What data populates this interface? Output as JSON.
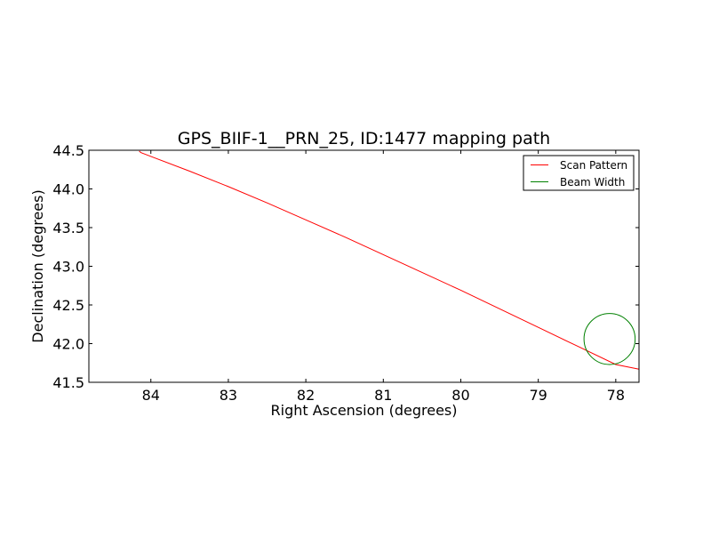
{
  "chart_data": {
    "type": "line",
    "title": "GPS_BIIF-1__PRN_25, ID:1477 mapping path",
    "xlabel": "Right Ascension (degrees)",
    "ylabel": "Declination (degrees)",
    "xlim": [
      84.8,
      77.7
    ],
    "ylim": [
      41.5,
      44.5
    ],
    "x_ticks": [
      84,
      83,
      82,
      81,
      80,
      79,
      78
    ],
    "x_tick_labels": [
      "84",
      "83",
      "82",
      "81",
      "80",
      "79",
      "78"
    ],
    "y_ticks": [
      41.5,
      42.0,
      42.5,
      43.0,
      43.5,
      44.0,
      44.5
    ],
    "y_tick_labels": [
      "41.5",
      "42.0",
      "42.5",
      "43.0",
      "43.5",
      "44.0",
      "44.5"
    ],
    "grid": false,
    "legend_position": "upper right",
    "series": [
      {
        "name": "Scan Pattern",
        "color": "#ff0000",
        "kind": "line",
        "x": [
          84.15,
          84.13,
          84.0,
          83.5,
          83.0,
          82.5,
          82.0,
          81.5,
          81.0,
          80.5,
          80.0,
          79.5,
          79.0,
          78.5,
          78.0,
          77.7
        ],
        "y": [
          44.49,
          44.47,
          44.42,
          44.23,
          44.03,
          43.82,
          43.6,
          43.38,
          43.15,
          42.92,
          42.69,
          42.45,
          42.21,
          41.97,
          41.73,
          41.67
        ]
      },
      {
        "name": "Beam Width",
        "color": "#008000",
        "kind": "circle",
        "center": [
          78.08,
          42.06
        ],
        "radius": 0.33
      }
    ]
  }
}
